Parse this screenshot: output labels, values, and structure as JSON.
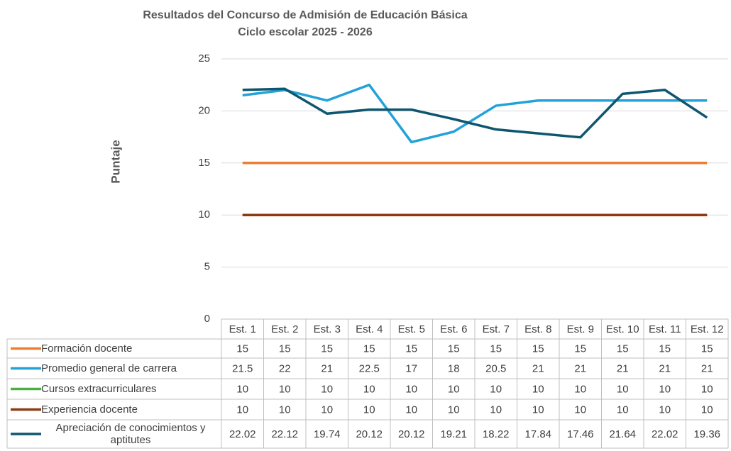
{
  "chart_data": {
    "type": "line",
    "title": "Resultados del Concurso de Admisión de Educación Básica",
    "subtitle": "Ciclo escolar 2025 - 2026",
    "y_label": "Puntaje",
    "categories": [
      "Est. 1",
      "Est. 2",
      "Est. 3",
      "Est. 4",
      "Est. 5",
      "Est. 6",
      "Est. 7",
      "Est. 8",
      "Est. 9",
      "Est. 10",
      "Est. 11",
      "Est. 12"
    ],
    "series": [
      {
        "name": "Formación docente",
        "color": "#ed7d31",
        "values": [
          15,
          15,
          15,
          15,
          15,
          15,
          15,
          15,
          15,
          15,
          15,
          15
        ]
      },
      {
        "name": "Promedio general de carrera",
        "color": "#22a2d8",
        "values": [
          21.5,
          22,
          21,
          22.5,
          17,
          18,
          20.5,
          21,
          21,
          21,
          21,
          21
        ]
      },
      {
        "name": "Cursos extracurriculares",
        "color": "#4caf3f",
        "values": [
          10,
          10,
          10,
          10,
          10,
          10,
          10,
          10,
          10,
          10,
          10,
          10
        ]
      },
      {
        "name": "Experiencia docente",
        "color": "#8b3a12",
        "values": [
          10,
          10,
          10,
          10,
          10,
          10,
          10,
          10,
          10,
          10,
          10,
          10
        ]
      },
      {
        "name": "Apreciación de conocimientos y aptitutes",
        "color": "#0e5670",
        "values": [
          22.02,
          22.12,
          19.74,
          20.12,
          20.12,
          19.21,
          18.22,
          17.84,
          17.46,
          21.64,
          22.02,
          19.36
        ]
      }
    ],
    "ylim": [
      0,
      25
    ],
    "yticks": [
      0,
      5,
      10,
      15,
      20,
      25
    ],
    "grid": true
  }
}
